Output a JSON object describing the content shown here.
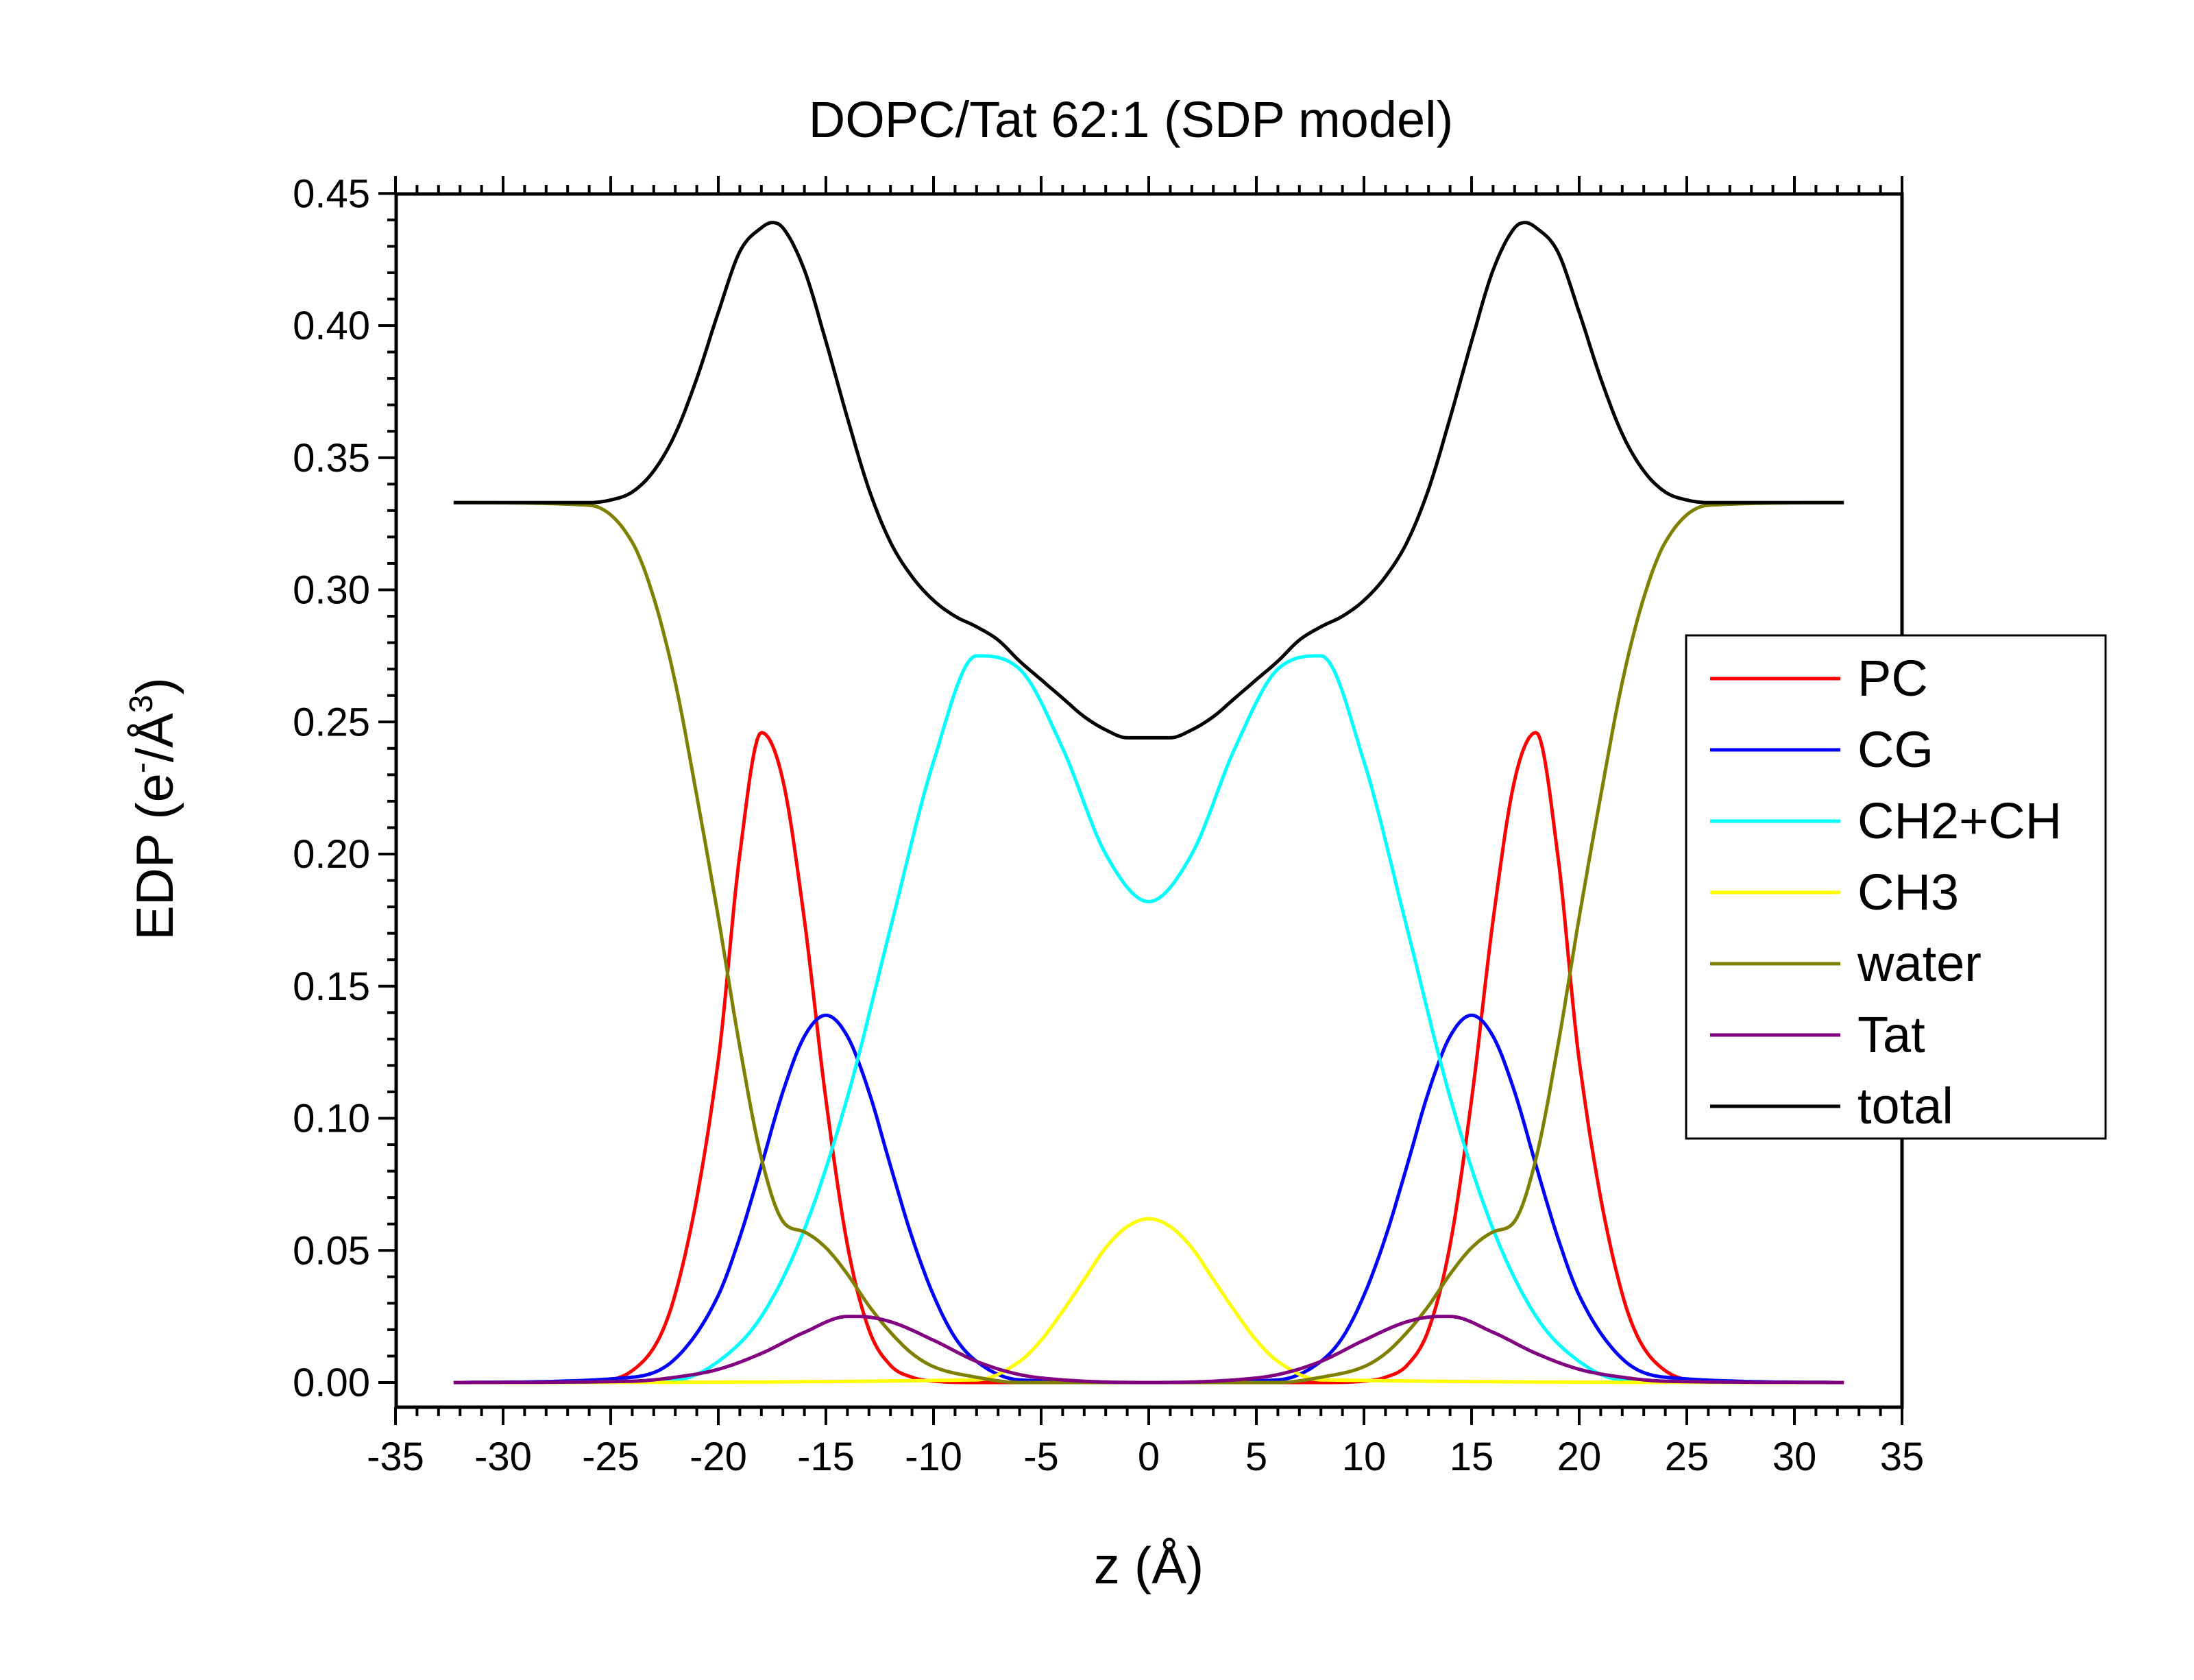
{
  "chart_data": {
    "type": "line",
    "title": "DOPC/Tat 62:1 (SDP model)",
    "xlabel": "z (Å)",
    "ylabel": {
      "base": "EDP (e",
      "sup1": "-",
      "mid": "/Å",
      "sup2": "3",
      "end": ")"
    },
    "xlim": [
      -35,
      35
    ],
    "ylim": [
      -0.01,
      0.45
    ],
    "x_ticks": [
      -35,
      -30,
      -25,
      -20,
      -15,
      -10,
      -5,
      0,
      5,
      10,
      15,
      20,
      25,
      30,
      35
    ],
    "x_tick_labels": [
      "-35",
      "-30",
      "-25",
      "-20",
      "-15",
      "-10",
      "-5",
      "0",
      "5",
      "10",
      "15",
      "20",
      "25",
      "30",
      "35"
    ],
    "y_ticks": [
      0.0,
      0.05,
      0.1,
      0.15,
      0.2,
      0.25,
      0.3,
      0.35,
      0.4,
      0.45
    ],
    "y_tick_labels": [
      "0.00",
      "0.05",
      "0.10",
      "0.15",
      "0.20",
      "0.25",
      "0.30",
      "0.35",
      "0.40",
      "0.45"
    ],
    "grid": false,
    "legend_position": "right",
    "x_range": [
      -32.3,
      32.3
    ],
    "series": [
      {
        "name": "PC",
        "color": "#ff0000",
        "z": [
          -32,
          -26,
          -24,
          -22,
          -20,
          -19,
          -18,
          -17,
          -16,
          -15,
          -14,
          -13,
          -12,
          -11,
          -10,
          -8,
          0,
          8,
          10,
          11,
          12,
          13,
          14,
          15,
          16,
          17,
          18,
          19,
          20,
          22,
          24,
          26,
          32
        ],
        "y": [
          0,
          0.0005,
          0.0045,
          0.0335,
          0.122,
          0.2,
          0.246,
          0.228,
          0.175,
          0.107,
          0.052,
          0.02,
          0.0065,
          0.002,
          0.0005,
          0,
          0,
          0,
          0.0005,
          0.002,
          0.0065,
          0.02,
          0.052,
          0.107,
          0.175,
          0.228,
          0.246,
          0.2,
          0.122,
          0.0335,
          0.0045,
          0.0005,
          0
        ]
      },
      {
        "name": "CG",
        "color": "#0000ff",
        "z": [
          -32,
          -24,
          -22,
          -20,
          -19,
          -18,
          -17,
          -16,
          -15,
          -14,
          -13,
          -12,
          -11,
          -10,
          -9,
          -8,
          -6,
          0,
          6,
          8,
          9,
          10,
          11,
          12,
          13,
          14,
          15,
          16,
          17,
          18,
          19,
          20,
          22,
          24,
          32
        ],
        "y": [
          0,
          0.002,
          0.009,
          0.033,
          0.055,
          0.082,
          0.11,
          0.131,
          0.139,
          0.131,
          0.11,
          0.082,
          0.055,
          0.033,
          0.017,
          0.008,
          0.001,
          0,
          0.001,
          0.008,
          0.017,
          0.033,
          0.055,
          0.082,
          0.11,
          0.131,
          0.139,
          0.131,
          0.11,
          0.082,
          0.055,
          0.033,
          0.009,
          0.002,
          0
        ]
      },
      {
        "name": "CH2+CH",
        "color": "#00ffff",
        "z": [
          -32,
          -22,
          -20,
          -18,
          -16,
          -14,
          -12,
          -10,
          -8,
          -6,
          -4,
          -2,
          0,
          2,
          4,
          6,
          8,
          10,
          12,
          14,
          16,
          18,
          20,
          22,
          32
        ],
        "y": [
          0,
          0.001,
          0.008,
          0.025,
          0.058,
          0.108,
          0.172,
          0.235,
          0.275,
          0.27,
          0.24,
          0.2,
          0.182,
          0.2,
          0.24,
          0.27,
          0.275,
          0.235,
          0.172,
          0.108,
          0.058,
          0.025,
          0.008,
          0.001,
          0
        ]
      },
      {
        "name": "CH3",
        "color": "#ffff00",
        "z": [
          -32,
          -8,
          -6,
          -5,
          -4,
          -3,
          -2,
          -1,
          0,
          1,
          2,
          3,
          4,
          5,
          6,
          8,
          32
        ],
        "y": [
          0,
          0.001,
          0.008,
          0.016,
          0.027,
          0.039,
          0.051,
          0.059,
          0.062,
          0.059,
          0.051,
          0.039,
          0.027,
          0.016,
          0.008,
          0.001,
          0
        ]
      },
      {
        "name": "water",
        "color": "#808000",
        "z": [
          -32,
          -26,
          -24,
          -23,
          -22,
          -21,
          -20,
          -19,
          -18,
          -17,
          -16,
          -15,
          -14,
          -13,
          -12,
          -11,
          -10,
          -8,
          -6,
          0,
          6,
          8,
          10,
          11,
          12,
          13,
          14,
          15,
          16,
          17,
          18,
          19,
          20,
          21,
          22,
          23,
          24,
          26,
          32
        ],
        "y": [
          0.333,
          0.332,
          0.318,
          0.297,
          0.265,
          0.222,
          0.176,
          0.127,
          0.085,
          0.061,
          0.057,
          0.051,
          0.041,
          0.029,
          0.019,
          0.011,
          0.006,
          0.002,
          0,
          0,
          0,
          0.002,
          0.006,
          0.011,
          0.019,
          0.029,
          0.041,
          0.051,
          0.057,
          0.061,
          0.085,
          0.127,
          0.176,
          0.222,
          0.265,
          0.297,
          0.318,
          0.332,
          0.333
        ]
      },
      {
        "name": "Tat",
        "color": "#800080",
        "z": [
          -32,
          -24,
          -22,
          -20,
          -18,
          -16,
          -14,
          -13.5,
          -12,
          -10,
          -8,
          -6,
          -4,
          0,
          4,
          6,
          8,
          10,
          12,
          13.5,
          14,
          16,
          18,
          20,
          22,
          24,
          32
        ],
        "y": [
          0,
          0.0005,
          0.002,
          0.005,
          0.011,
          0.019,
          0.025,
          0.025,
          0.023,
          0.016,
          0.008,
          0.003,
          0.001,
          0,
          0.001,
          0.003,
          0.008,
          0.016,
          0.023,
          0.025,
          0.025,
          0.019,
          0.011,
          0.005,
          0.002,
          0.0005,
          0
        ]
      },
      {
        "name": "total",
        "color": "#000000",
        "z": [
          -32,
          -26,
          -25,
          -24,
          -23,
          -22,
          -21,
          -20,
          -19,
          -18,
          -17.5,
          -17,
          -16,
          -15,
          -14,
          -13,
          -12,
          -11,
          -10,
          -9,
          -8,
          -7,
          -6,
          -5,
          -4,
          -3,
          -2,
          -1,
          0,
          1,
          2,
          3,
          4,
          5,
          6,
          7,
          8,
          9,
          10,
          11,
          12,
          13,
          14,
          15,
          16,
          17,
          17.5,
          18,
          19,
          20,
          21,
          22,
          23,
          24,
          25,
          26,
          32
        ],
        "y": [
          0.333,
          0.333,
          0.334,
          0.337,
          0.345,
          0.359,
          0.38,
          0.405,
          0.428,
          0.437,
          0.439,
          0.437,
          0.421,
          0.394,
          0.365,
          0.338,
          0.318,
          0.305,
          0.296,
          0.29,
          0.286,
          0.281,
          0.273,
          0.266,
          0.259,
          0.252,
          0.247,
          0.244,
          0.244,
          0.244,
          0.247,
          0.252,
          0.259,
          0.266,
          0.273,
          0.281,
          0.286,
          0.29,
          0.296,
          0.305,
          0.318,
          0.338,
          0.365,
          0.394,
          0.421,
          0.437,
          0.439,
          0.437,
          0.428,
          0.405,
          0.38,
          0.359,
          0.345,
          0.337,
          0.334,
          0.333,
          0.333
        ]
      }
    ]
  }
}
